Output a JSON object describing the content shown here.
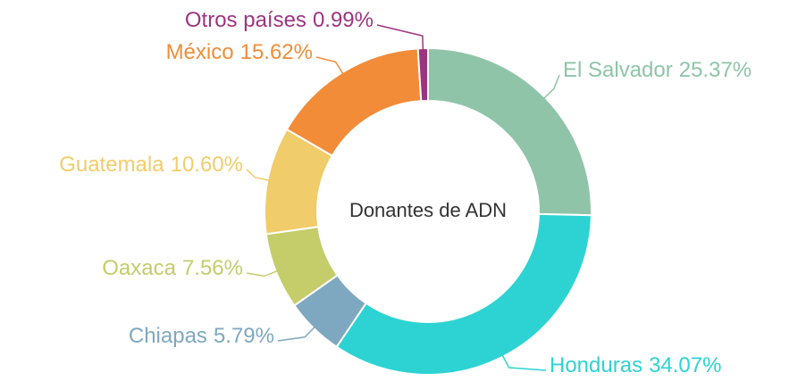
{
  "chart_data": {
    "type": "donut",
    "title": "Donantes de ADN",
    "categories": [
      "El Salvador",
      "Honduras",
      "Chiapas",
      "Oaxaca",
      "Guatemala",
      "México",
      "Otros países"
    ],
    "values": [
      25.37,
      34.07,
      5.79,
      7.56,
      10.6,
      15.62,
      0.99
    ],
    "value_labels": [
      "25.37%",
      "34.07%",
      "5.79%",
      "7.56%",
      "10.60%",
      "15.62%",
      "0.99%"
    ],
    "colors": [
      "#8fc4a8",
      "#2dd3d3",
      "#7ea8bf",
      "#c5cc6a",
      "#f0cc6a",
      "#f28c38",
      "#9b3580"
    ]
  }
}
